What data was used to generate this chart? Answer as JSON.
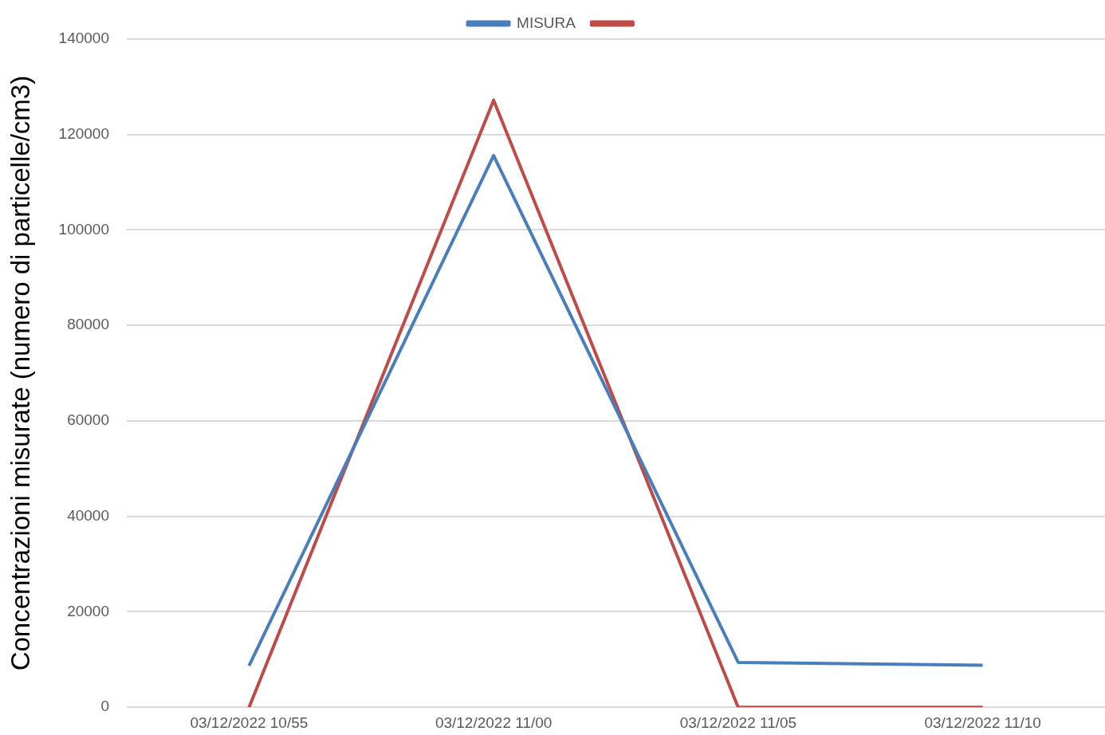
{
  "chart_data": {
    "type": "line",
    "ylabel": "Concentrazioni misurate (numero di particelle/cm3)",
    "categories": [
      "03/12/2022 10/55",
      "03/12/2022 11/00",
      "03/12/2022 11/05",
      "03/12/2022 11/10"
    ],
    "series": [
      {
        "name": "MISURA",
        "color": "#4a7ebb",
        "values": [
          8700,
          115600,
          9400,
          8800
        ]
      },
      {
        "color": "#be4b48",
        "values": [
          0,
          127200,
          0,
          0
        ]
      }
    ],
    "ylim": [
      0,
      140000
    ],
    "yticks": [
      0,
      20000,
      40000,
      60000,
      80000,
      100000,
      120000,
      140000
    ],
    "grid": "y",
    "legend": "top",
    "marker": "none",
    "line_style": "solid"
  }
}
